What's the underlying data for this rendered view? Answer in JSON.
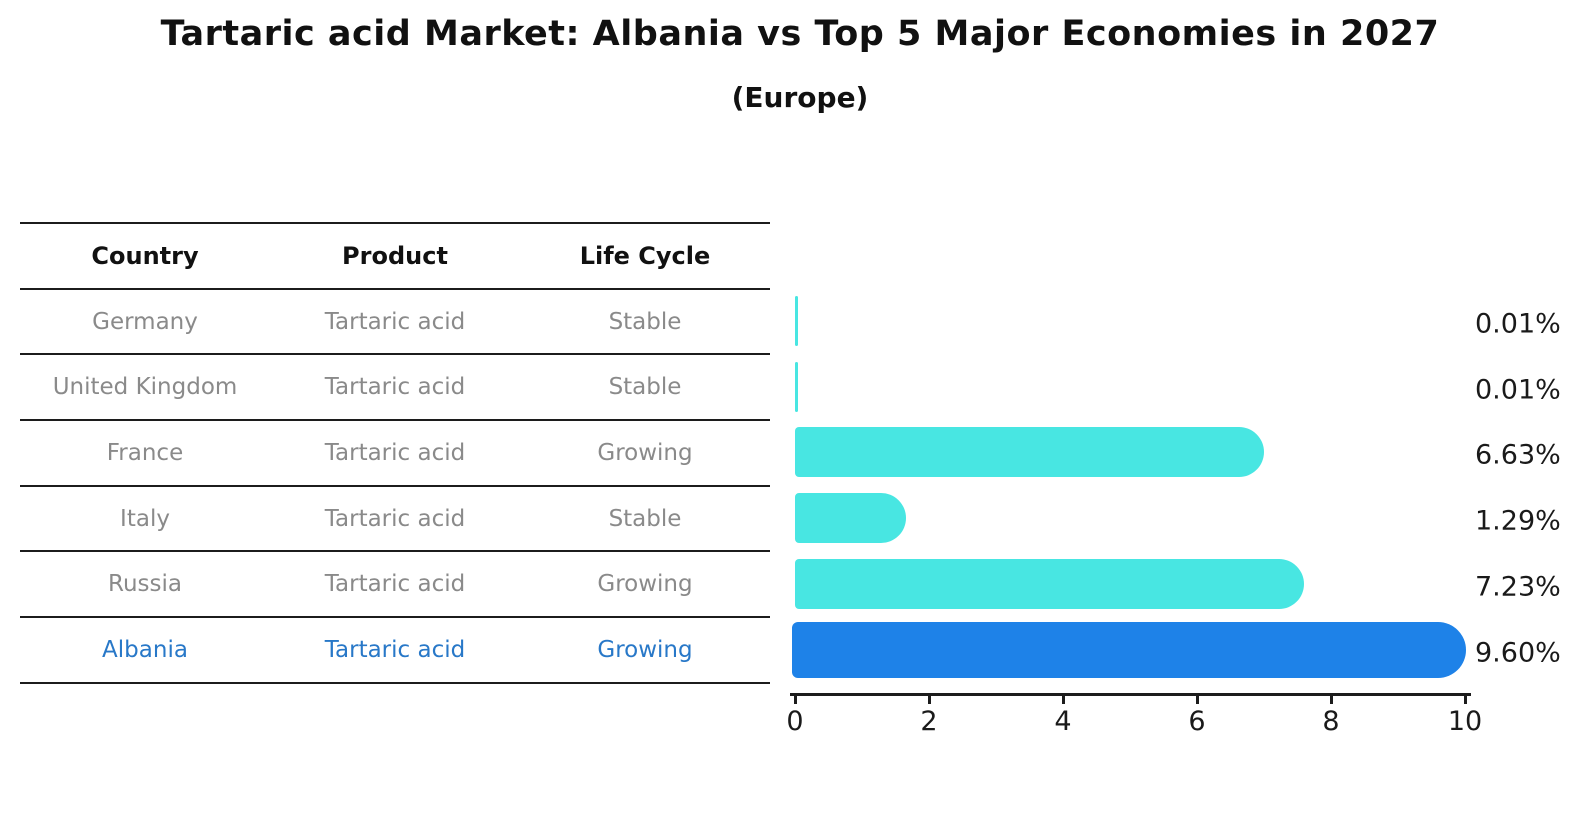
{
  "header": {
    "title": "Tartaric acid Market: Albania vs Top 5 Major Economies in 2027",
    "subtitle": "(Europe)"
  },
  "table": {
    "columns": [
      "Country",
      "Product",
      "Life Cycle"
    ],
    "rows": [
      {
        "country": "Germany",
        "product": "Tartaric acid",
        "life_cycle": "Stable",
        "highlight": false
      },
      {
        "country": "United Kingdom",
        "product": "Tartaric acid",
        "life_cycle": "Stable",
        "highlight": false
      },
      {
        "country": "France",
        "product": "Tartaric acid",
        "life_cycle": "Growing",
        "highlight": false
      },
      {
        "country": "Italy",
        "product": "Tartaric acid",
        "life_cycle": "Stable",
        "highlight": false
      },
      {
        "country": "Russia",
        "product": "Tartaric acid",
        "life_cycle": "Growing",
        "highlight": false
      },
      {
        "country": "Albania",
        "product": "Tartaric acid",
        "life_cycle": "Growing",
        "highlight": true
      }
    ]
  },
  "chart_data": {
    "type": "bar",
    "orientation": "horizontal",
    "categories": [
      "Germany",
      "United Kingdom",
      "France",
      "Italy",
      "Russia",
      "Albania"
    ],
    "values": [
      0.01,
      0.01,
      6.63,
      1.29,
      7.23,
      9.6
    ],
    "value_labels": [
      "0.01%",
      "0.01%",
      "6.63%",
      "1.29%",
      "7.23%",
      "9.60%"
    ],
    "title": "Tartaric acid Market: Albania vs Top 5 Major Economies in 2027 (Europe)",
    "xlabel": "",
    "ylabel": "",
    "xlim": [
      0,
      10
    ],
    "x_ticks": [
      0,
      2,
      4,
      6,
      8,
      10
    ],
    "grid": false,
    "legend": false,
    "bar_color": "#48e6e2",
    "highlight_color": "#1e82e8",
    "highlight_index": 5,
    "highlight_edge_style": "dotted"
  },
  "colors": {
    "table_text": "#8a8a8a",
    "table_highlight_text": "#2878c8",
    "axis": "#1c1c1c",
    "label_text": "#1a1a1a"
  }
}
